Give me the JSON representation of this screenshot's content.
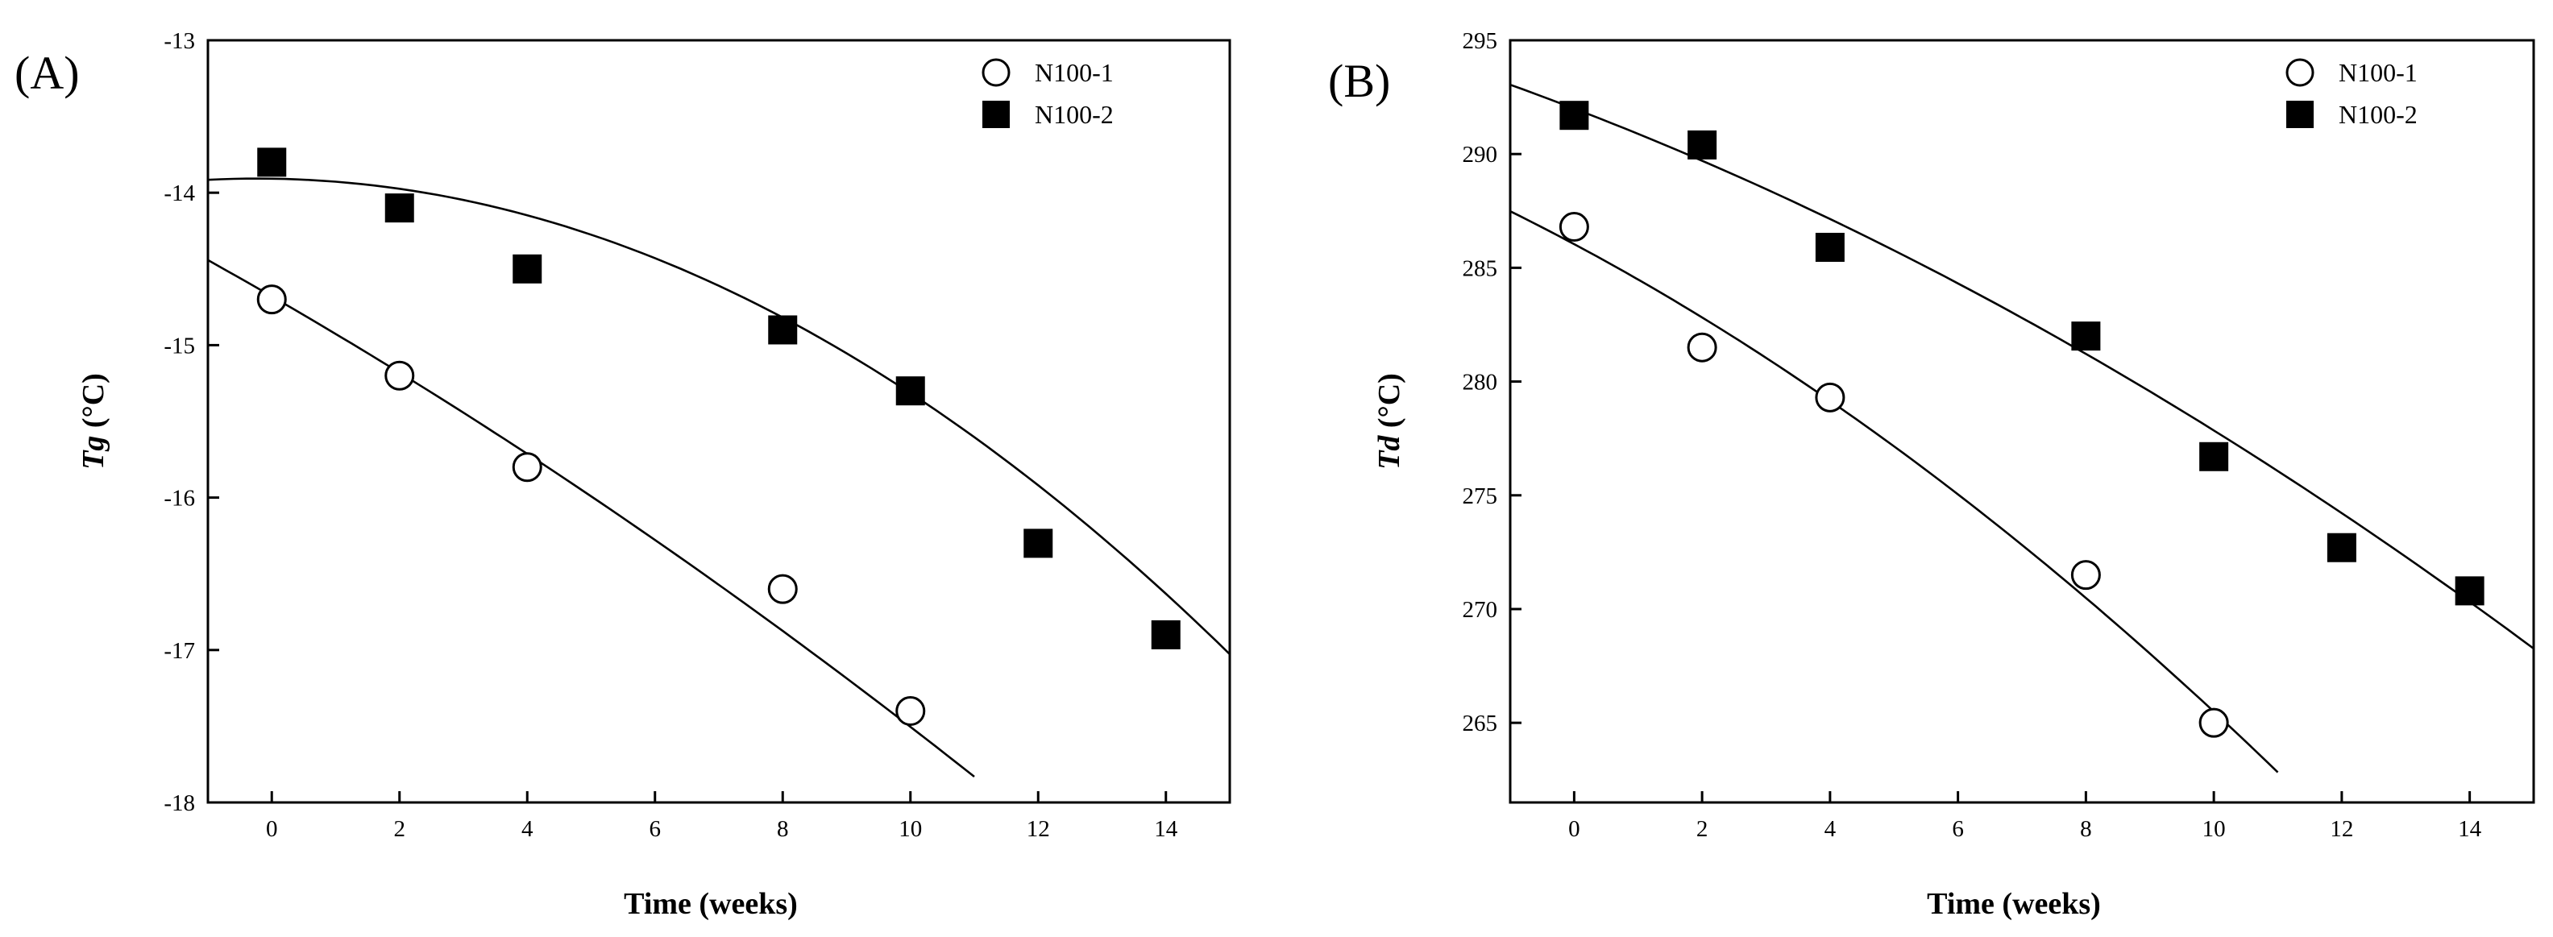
{
  "chart_data": [
    {
      "type": "scatter",
      "panel_label": "(A)",
      "xlabel": "Time (weeks)",
      "ylabel_var": "Tg",
      "ylabel_unit": " (°C)",
      "xlim": [
        -1,
        15
      ],
      "ylim": [
        -18,
        -13
      ],
      "x_ticks": [
        0,
        2,
        4,
        6,
        8,
        10,
        12,
        14
      ],
      "y_ticks": [
        -18,
        -17,
        -16,
        -15,
        -14,
        -13
      ],
      "legend_position": "top-right",
      "series": [
        {
          "name": "N100-1",
          "marker": "open-circle",
          "x": [
            0,
            2,
            4,
            8,
            10
          ],
          "y": [
            -14.7,
            -15.2,
            -15.8,
            -16.6,
            -17.4
          ],
          "fit": {
            "type": "quadratic",
            "coeffs": [
              -14.68,
              -0.2422,
              -0.00402
            ],
            "x_range": [
              -1,
              11
            ]
          }
        },
        {
          "name": "N100-2",
          "marker": "filled-square",
          "x": [
            0,
            2,
            4,
            8,
            10,
            12,
            14
          ],
          "y": [
            -13.8,
            -14.1,
            -14.5,
            -14.9,
            -15.3,
            -16.3,
            -16.9
          ],
          "fit": {
            "type": "quadratic",
            "coeffs": [
              -13.908,
              -0.0062,
              -0.01345
            ],
            "x_range": [
              -1,
              15
            ]
          }
        }
      ]
    },
    {
      "type": "scatter",
      "panel_label": "(B)",
      "xlabel": "Time (weeks)",
      "ylabel_var": "Td",
      "ylabel_unit": " (°C)",
      "xlim": [
        -1,
        15
      ],
      "ylim": [
        261.5,
        295
      ],
      "x_ticks": [
        0,
        2,
        4,
        6,
        8,
        10,
        12,
        14
      ],
      "y_ticks": [
        265,
        270,
        275,
        280,
        285,
        290,
        295
      ],
      "legend_position": "top-right",
      "series": [
        {
          "name": "N100-1",
          "marker": "open-circle",
          "x": [
            0,
            2,
            4,
            8,
            10
          ],
          "y": [
            286.8,
            281.5,
            279.3,
            271.5,
            265.0
          ],
          "fit": {
            "type": "quadratic",
            "coeffs": [
              286.04,
              -1.5,
              -0.0555
            ],
            "x_range": [
              -1,
              11
            ]
          }
        },
        {
          "name": "N100-2",
          "marker": "filled-square",
          "x": [
            0,
            2,
            4,
            8,
            10,
            12,
            14
          ],
          "y": [
            291.7,
            290.4,
            285.9,
            282.0,
            276.7,
            272.7,
            270.8
          ],
          "fit": {
            "type": "quadratic",
            "coeffs": [
              292.0,
              -1.08,
              -0.0335
            ],
            "x_range": [
              -1,
              15
            ]
          }
        }
      ]
    }
  ]
}
